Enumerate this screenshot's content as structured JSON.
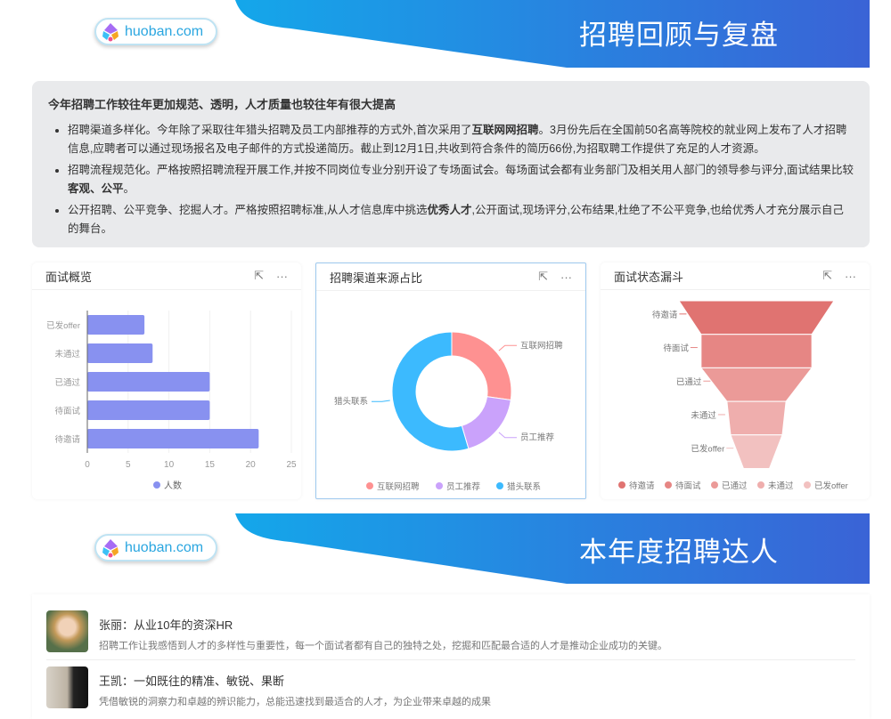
{
  "banner1": {
    "logo_text": "huoban.com",
    "title": "招聘回顾与复盘"
  },
  "summary": {
    "heading": "今年招聘工作较往年更加规范、透明，人才质量也较往年有很大提高",
    "items": [
      {
        "pre": "招聘渠道多样化。今年除了采取往年猎头招聘及员工内部推荐的方式外,首次采用了",
        "bold": "互联网网招聘",
        "post": "。3月份先后在全国前50名高等院校的就业网上发布了人才招聘信息,应聘者可以通过现场报名及电子邮件的方式投递简历。截止到12月1日,共收到符合条件的简历66份,为招取聘工作提供了充足的人才资源。"
      },
      {
        "pre": "招聘流程规范化。严格按照招聘流程开展工作,并按不同岗位专业分别开设了专场面试会。每场面试会都有业务部门及相关用人部门的领导参与评分,面试结果比较",
        "bold": "客观、公平",
        "post": "。"
      },
      {
        "pre": "公开招聘、公平竞争、挖掘人才。严格按照招聘标准,从人才信息库中挑选",
        "bold": "优秀人才",
        "post": ",公开面试,现场评分,公布结果,杜绝了不公平竞争,也给优秀人才充分展示自己的舞台。"
      }
    ]
  },
  "cards": {
    "bar_title": "面试概览",
    "pie_title": "招聘渠道来源占比",
    "funnel_title": "面试状态漏斗",
    "open_icon": "external-link-icon",
    "more_icon": "more-icon"
  },
  "chart_data": [
    {
      "type": "bar",
      "orientation": "horizontal",
      "categories": [
        "待邀请",
        "待面试",
        "已通过",
        "未通过",
        "已发offer"
      ],
      "series": [
        {
          "name": "人数",
          "values": [
            21,
            15,
            15,
            8,
            7
          ],
          "color": "#8891f0"
        }
      ],
      "xlim": [
        0,
        25
      ],
      "xticks": [
        0,
        5,
        10,
        15,
        20,
        25
      ],
      "grid": true,
      "legend": "bottom"
    },
    {
      "type": "pie",
      "donut": true,
      "categories": [
        "互联网招聘",
        "员工推荐",
        "猎头联系"
      ],
      "values": [
        18,
        12,
        36
      ],
      "colors": [
        "#fe9191",
        "#caa2fb",
        "#3cbafe"
      ],
      "legend": "bottom"
    },
    {
      "type": "funnel",
      "categories": [
        "待邀请",
        "待面试",
        "已通过",
        "未通过",
        "已发offer"
      ],
      "values": [
        21,
        15,
        15,
        8,
        7
      ],
      "colors": [
        "#e07371",
        "#e68684",
        "#eb9a98",
        "#efaead",
        "#f2c1c0"
      ],
      "legend": "bottom"
    }
  ],
  "banner2": {
    "logo_text": "huoban.com",
    "title": "本年度招聘达人"
  },
  "people": [
    {
      "name": "张丽：从业10年的资深HR",
      "desc": "招聘工作让我感悟到人才的多样性与重要性，每一个面试者都有自己的独特之处，挖掘和匹配最合适的人才是推动企业成功的关键。"
    },
    {
      "name": "王凯：一如既往的精准、敏锐、果断",
      "desc": "凭借敏锐的洞察力和卓越的辨识能力，总能迅速找到最适合的人才，为企业带来卓越的成果"
    }
  ]
}
